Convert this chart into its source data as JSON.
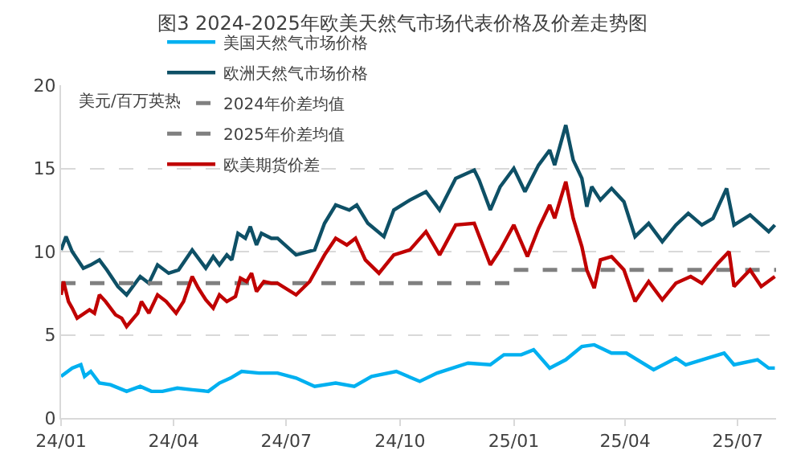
{
  "chart_data": {
    "type": "line",
    "title": "图3 2024-2025年欧美天然气市场代表价格及价差走势图",
    "ylabel": "美元/百万英热",
    "xlim": [
      "2024-01-01",
      "2025-08-01"
    ],
    "xticks": [
      {
        "value": "2024-01-01",
        "label": "24/01"
      },
      {
        "value": "2024-04-01",
        "label": "24/04"
      },
      {
        "value": "2024-07-01",
        "label": "24/07"
      },
      {
        "value": "2024-10-01",
        "label": "24/10"
      },
      {
        "value": "2025-01-01",
        "label": "25/01"
      },
      {
        "value": "2025-04-01",
        "label": "25/04"
      },
      {
        "value": "2025-07-01",
        "label": "25/07"
      }
    ],
    "ylim": [
      0,
      20
    ],
    "yticks": [
      0,
      5,
      10,
      15,
      20
    ],
    "grid": "y",
    "legend": "top",
    "marker": "none",
    "line_style": "solid",
    "series": [
      {
        "name": "美国天然气市场价格",
        "color": "#00b0f0",
        "x": [
          "2024-01-01",
          "2024-01-10",
          "2024-01-17",
          "2024-01-20",
          "2024-01-25",
          "2024-02-01",
          "2024-02-10",
          "2024-02-23",
          "2024-03-05",
          "2024-03-14",
          "2024-03-23",
          "2024-04-04",
          "2024-04-16",
          "2024-04-29",
          "2024-05-08",
          "2024-05-17",
          "2024-05-26",
          "2024-06-09",
          "2024-06-24",
          "2024-07-09",
          "2024-07-24",
          "2024-08-10",
          "2024-08-25",
          "2024-09-08",
          "2024-09-28",
          "2024-10-17",
          "2024-10-31",
          "2024-11-25",
          "2024-12-13",
          "2024-12-24",
          "2025-01-07",
          "2025-01-17",
          "2025-01-30",
          "2025-02-12",
          "2025-02-25",
          "2025-03-07",
          "2025-03-21",
          "2025-04-02",
          "2025-04-24",
          "2025-05-12",
          "2025-05-20",
          "2025-06-07",
          "2025-06-20",
          "2025-06-28",
          "2025-07-17",
          "2025-07-26",
          "2025-07-31"
        ],
        "values": [
          2.5,
          3.0,
          3.2,
          2.5,
          2.8,
          2.1,
          2.0,
          1.6,
          1.9,
          1.6,
          1.6,
          1.8,
          1.7,
          1.6,
          2.1,
          2.4,
          2.8,
          2.7,
          2.7,
          2.4,
          1.9,
          2.1,
          1.9,
          2.5,
          2.8,
          2.2,
          2.7,
          3.3,
          3.2,
          3.8,
          3.8,
          4.1,
          3.0,
          3.5,
          4.3,
          4.4,
          3.9,
          3.9,
          2.9,
          3.6,
          3.2,
          3.6,
          3.9,
          3.2,
          3.5,
          3.0,
          3.0
        ]
      },
      {
        "name": "欧洲天然气市场价格",
        "color": "#0e5066",
        "x": [
          "2024-01-01",
          "2024-01-05",
          "2024-01-10",
          "2024-01-19",
          "2024-01-25",
          "2024-02-01",
          "2024-02-07",
          "2024-02-16",
          "2024-02-23",
          "2024-03-05",
          "2024-03-12",
          "2024-03-19",
          "2024-03-28",
          "2024-04-05",
          "2024-04-16",
          "2024-04-27",
          "2024-05-03",
          "2024-05-08",
          "2024-05-14",
          "2024-05-18",
          "2024-05-23",
          "2024-05-29",
          "2024-06-02",
          "2024-06-07",
          "2024-06-11",
          "2024-06-19",
          "2024-06-24",
          "2024-07-09",
          "2024-07-24",
          "2024-08-01",
          "2024-08-10",
          "2024-08-21",
          "2024-08-27",
          "2024-09-05",
          "2024-09-18",
          "2024-09-26",
          "2024-10-09",
          "2024-10-22",
          "2024-11-02",
          "2024-11-15",
          "2024-11-30",
          "2024-12-04",
          "2024-12-13",
          "2024-12-21",
          "2025-01-01",
          "2025-01-10",
          "2025-01-21",
          "2025-01-30",
          "2025-02-03",
          "2025-02-12",
          "2025-02-18",
          "2025-02-25",
          "2025-03-01",
          "2025-03-05",
          "2025-03-12",
          "2025-03-21",
          "2025-03-31",
          "2025-04-09",
          "2025-04-20",
          "2025-05-01",
          "2025-05-12",
          "2025-05-22",
          "2025-06-02",
          "2025-06-11",
          "2025-06-22",
          "2025-06-28",
          "2025-07-11",
          "2025-07-20",
          "2025-07-26",
          "2025-07-31"
        ],
        "values": [
          10.1,
          10.9,
          10.0,
          9.0,
          9.2,
          9.5,
          8.9,
          7.9,
          7.4,
          8.5,
          8.1,
          9.2,
          8.7,
          8.9,
          10.1,
          9.0,
          9.7,
          9.2,
          9.8,
          9.5,
          11.1,
          10.8,
          11.5,
          10.4,
          11.1,
          10.8,
          10.8,
          9.8,
          10.1,
          11.7,
          12.8,
          12.5,
          12.8,
          11.7,
          10.9,
          12.5,
          13.1,
          13.6,
          12.5,
          14.4,
          14.9,
          14.3,
          12.5,
          13.9,
          15.0,
          13.6,
          15.2,
          16.1,
          15.2,
          17.6,
          15.5,
          14.4,
          12.7,
          13.9,
          13.1,
          13.8,
          13.0,
          10.9,
          11.7,
          10.6,
          11.6,
          12.3,
          11.6,
          12.0,
          13.8,
          11.6,
          12.2,
          11.6,
          11.2,
          11.6
        ]
      },
      {
        "name": "2024年价差均值",
        "color": "#808080",
        "line_style": "dashed",
        "x": [
          "2024-01-01",
          "2024-12-31"
        ],
        "values": [
          8.1,
          8.1
        ]
      },
      {
        "name": "2025年价差均值",
        "color": "#808080",
        "line_style": "dashed",
        "x": [
          "2025-01-01",
          "2025-08-01"
        ],
        "values": [
          8.9,
          8.9
        ]
      },
      {
        "name": "欧美期货价差",
        "color": "#c00000",
        "x": [
          "2024-01-01",
          "2024-01-03",
          "2024-01-07",
          "2024-01-10",
          "2024-01-14",
          "2024-01-24",
          "2024-01-28",
          "2024-02-01",
          "2024-02-06",
          "2024-02-14",
          "2024-02-19",
          "2024-02-23",
          "2024-03-03",
          "2024-03-06",
          "2024-03-12",
          "2024-03-19",
          "2024-03-26",
          "2024-04-03",
          "2024-04-09",
          "2024-04-16",
          "2024-04-21",
          "2024-04-27",
          "2024-05-03",
          "2024-05-08",
          "2024-05-14",
          "2024-05-21",
          "2024-05-25",
          "2024-05-30",
          "2024-06-03",
          "2024-06-07",
          "2024-06-13",
          "2024-06-19",
          "2024-06-24",
          "2024-07-09",
          "2024-07-20",
          "2024-08-01",
          "2024-08-10",
          "2024-08-19",
          "2024-08-26",
          "2024-09-03",
          "2024-09-14",
          "2024-09-26",
          "2024-10-09",
          "2024-10-22",
          "2024-11-02",
          "2024-11-15",
          "2024-11-30",
          "2024-12-13",
          "2024-12-21",
          "2025-01-01",
          "2025-01-12",
          "2025-01-21",
          "2025-01-30",
          "2025-02-03",
          "2025-02-12",
          "2025-02-18",
          "2025-02-25",
          "2025-03-01",
          "2025-03-07",
          "2025-03-12",
          "2025-03-21",
          "2025-03-31",
          "2025-04-09",
          "2025-04-20",
          "2025-05-01",
          "2025-05-12",
          "2025-05-24",
          "2025-06-02",
          "2025-06-15",
          "2025-06-24",
          "2025-06-28",
          "2025-07-11",
          "2025-07-20",
          "2025-07-31"
        ],
        "values": [
          7.4,
          8.2,
          7.0,
          6.6,
          6.0,
          6.5,
          6.3,
          7.4,
          7.0,
          6.2,
          6.0,
          5.5,
          6.3,
          7.0,
          6.3,
          7.4,
          7.0,
          6.3,
          7.0,
          8.5,
          7.8,
          7.1,
          6.6,
          7.4,
          7.0,
          7.3,
          8.4,
          8.2,
          8.7,
          7.6,
          8.2,
          8.1,
          8.1,
          7.4,
          8.2,
          9.8,
          10.8,
          10.4,
          10.8,
          9.5,
          8.7,
          9.8,
          10.1,
          11.2,
          9.8,
          11.6,
          11.7,
          9.2,
          10.1,
          11.6,
          9.7,
          11.4,
          12.8,
          12.0,
          14.2,
          12.0,
          10.3,
          8.9,
          7.8,
          9.5,
          9.7,
          8.9,
          7.0,
          8.2,
          7.1,
          8.1,
          8.5,
          8.1,
          9.3,
          10.0,
          7.9,
          8.9,
          7.9,
          8.5
        ]
      }
    ]
  }
}
